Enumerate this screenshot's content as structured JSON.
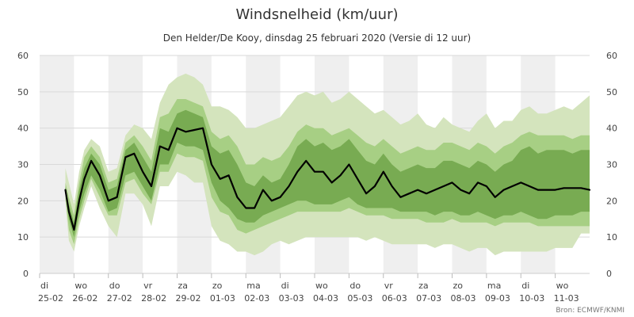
{
  "chart_data": {
    "type": "area",
    "title": "Windsnelheid (km/uur)",
    "subtitle": "Den Helder/De Kooy, dinsdag 25 februari 2020 (Versie di 12 uur)",
    "source": "Bron: ECMWF/KNMI",
    "ylim": [
      0,
      60
    ],
    "yticks": [
      0,
      10,
      20,
      30,
      40,
      50,
      60
    ],
    "xlim": [
      0,
      16
    ],
    "x_ticks": [
      {
        "day": "di",
        "date": "25-02"
      },
      {
        "day": "wo",
        "date": "26-02"
      },
      {
        "day": "do",
        "date": "27-02"
      },
      {
        "day": "vr",
        "date": "28-02"
      },
      {
        "day": "za",
        "date": "29-02"
      },
      {
        "day": "zo",
        "date": "01-03"
      },
      {
        "day": "ma",
        "date": "02-03"
      },
      {
        "day": "di",
        "date": "03-03"
      },
      {
        "day": "wo",
        "date": "04-03"
      },
      {
        "day": "do",
        "date": "05-03"
      },
      {
        "day": "vr",
        "date": "06-03"
      },
      {
        "day": "za",
        "date": "07-03"
      },
      {
        "day": "zo",
        "date": "08-03"
      },
      {
        "day": "ma",
        "date": "09-03"
      },
      {
        "day": "di",
        "date": "10-03"
      },
      {
        "day": "wo",
        "date": "11-03"
      }
    ],
    "colors": {
      "outer_band": "#d4e4bd",
      "middle_band": "#a7cf84",
      "inner_band": "#78ab52",
      "median": "#000000",
      "shade": "#efefef",
      "grid": "#d9d9d9"
    },
    "x": [
      0.75,
      0.85,
      1.0,
      1.15,
      1.3,
      1.5,
      1.75,
      2.0,
      2.25,
      2.5,
      2.75,
      3.0,
      3.25,
      3.5,
      3.75,
      4.0,
      4.25,
      4.5,
      4.75,
      5.0,
      5.25,
      5.5,
      5.75,
      6.0,
      6.25,
      6.5,
      6.75,
      7.0,
      7.25,
      7.5,
      7.75,
      8.0,
      8.25,
      8.5,
      8.75,
      9.0,
      9.25,
      9.5,
      9.75,
      10.0,
      10.25,
      10.5,
      10.75,
      11.0,
      11.25,
      11.5,
      11.75,
      12.0,
      12.25,
      12.5,
      12.75,
      13.0,
      13.25,
      13.5,
      13.75,
      14.0,
      14.25,
      14.5,
      14.75,
      15.0,
      15.25,
      15.5,
      15.75,
      16.0
    ],
    "median": [
      23,
      17,
      12,
      20,
      26,
      31,
      27,
      20,
      21,
      32,
      33,
      28,
      24,
      35,
      34,
      40,
      39,
      39.5,
      40,
      30,
      26,
      27,
      21,
      18,
      18,
      23,
      20,
      21,
      24,
      28,
      31,
      28,
      28,
      25,
      27,
      30,
      26,
      22,
      24,
      28,
      24,
      21,
      22,
      23,
      22,
      23,
      24,
      25,
      23,
      22,
      25,
      24,
      21,
      23,
      24,
      25,
      24,
      23,
      23,
      23,
      23.5,
      23.5,
      23.5,
      23
    ],
    "inner_low": [
      22,
      15,
      10,
      17,
      22,
      27,
      23,
      17,
      18,
      27,
      28,
      24,
      20,
      30,
      30,
      36,
      35,
      35,
      34,
      25,
      20,
      18,
      15,
      14,
      14,
      16,
      17,
      18,
      19,
      20,
      20,
      19,
      19,
      19,
      20,
      21,
      19,
      18,
      18,
      18,
      18,
      17,
      17,
      17,
      17,
      16,
      17,
      17,
      16,
      16,
      17,
      16,
      15,
      16,
      16,
      17,
      16,
      15,
      15,
      16,
      16,
      16,
      17,
      17
    ],
    "inner_high": [
      24,
      19,
      14,
      23,
      29,
      33,
      30,
      23,
      24,
      34,
      36,
      32,
      28,
      40,
      39,
      44,
      45,
      44,
      43,
      35,
      33,
      34,
      30,
      25,
      24,
      27,
      25,
      26,
      30,
      35,
      37,
      35,
      36,
      34,
      35,
      37,
      34,
      31,
      30,
      33,
      30,
      28,
      29,
      30,
      29,
      29,
      31,
      31,
      30,
      29,
      31,
      30,
      28,
      30,
      31,
      34,
      35,
      33,
      34,
      34,
      34,
      33,
      34,
      34
    ],
    "middle_low": [
      21,
      12,
      8,
      15,
      20,
      26,
      21,
      16,
      16,
      25,
      26,
      22,
      19,
      28,
      28,
      33,
      32,
      32,
      31,
      21,
      17,
      16,
      12,
      11,
      12,
      13,
      14,
      15,
      16,
      17,
      17,
      17,
      17,
      17,
      17,
      18,
      17,
      16,
      16,
      16,
      15,
      15,
      15,
      15,
      14,
      14,
      14,
      15,
      14,
      14,
      14,
      14,
      13,
      14,
      14,
      14,
      14,
      13,
      13,
      13,
      13,
      13,
      13,
      13
    ],
    "middle_high": [
      25,
      21,
      16,
      25,
      32,
      35,
      32,
      25,
      26,
      36,
      38,
      35,
      31,
      43,
      44,
      48,
      48,
      47,
      46,
      39,
      37,
      38,
      35,
      30,
      30,
      32,
      31,
      32,
      35,
      39,
      41,
      40,
      40,
      38,
      39,
      40,
      38,
      36,
      35,
      37,
      35,
      33,
      34,
      35,
      34,
      34,
      36,
      36,
      35,
      34,
      36,
      35,
      33,
      35,
      36,
      38,
      39,
      38,
      38,
      38,
      38,
      37,
      38,
      38
    ],
    "outer_low": [
      20,
      9,
      6,
      13,
      18,
      24,
      18,
      13,
      10,
      22,
      22,
      19,
      13,
      24,
      24,
      28,
      27,
      25,
      25,
      13,
      9,
      8,
      6,
      6,
      5,
      6,
      8,
      9,
      8,
      9,
      10,
      10,
      10,
      10,
      10,
      10,
      10,
      9,
      10,
      9,
      8,
      8,
      8,
      8,
      8,
      7,
      8,
      8,
      7,
      6,
      7,
      7,
      5,
      6,
      6,
      6,
      6,
      6,
      6,
      7,
      7,
      7,
      11,
      11
    ],
    "outer_high": [
      29,
      25,
      19,
      28,
      34,
      37,
      35,
      28,
      29,
      38,
      41,
      40,
      37,
      47,
      52,
      54,
      55,
      54,
      52,
      46,
      46,
      45,
      43,
      40,
      40,
      41,
      42,
      43,
      46,
      49,
      50,
      49,
      50,
      47,
      48,
      50,
      48,
      46,
      44,
      45,
      43,
      41,
      42,
      44,
      41,
      40,
      43,
      41,
      40,
      39,
      42,
      44,
      40,
      42,
      42,
      45,
      46,
      44,
      44,
      45,
      46,
      45,
      47,
      49
    ]
  }
}
